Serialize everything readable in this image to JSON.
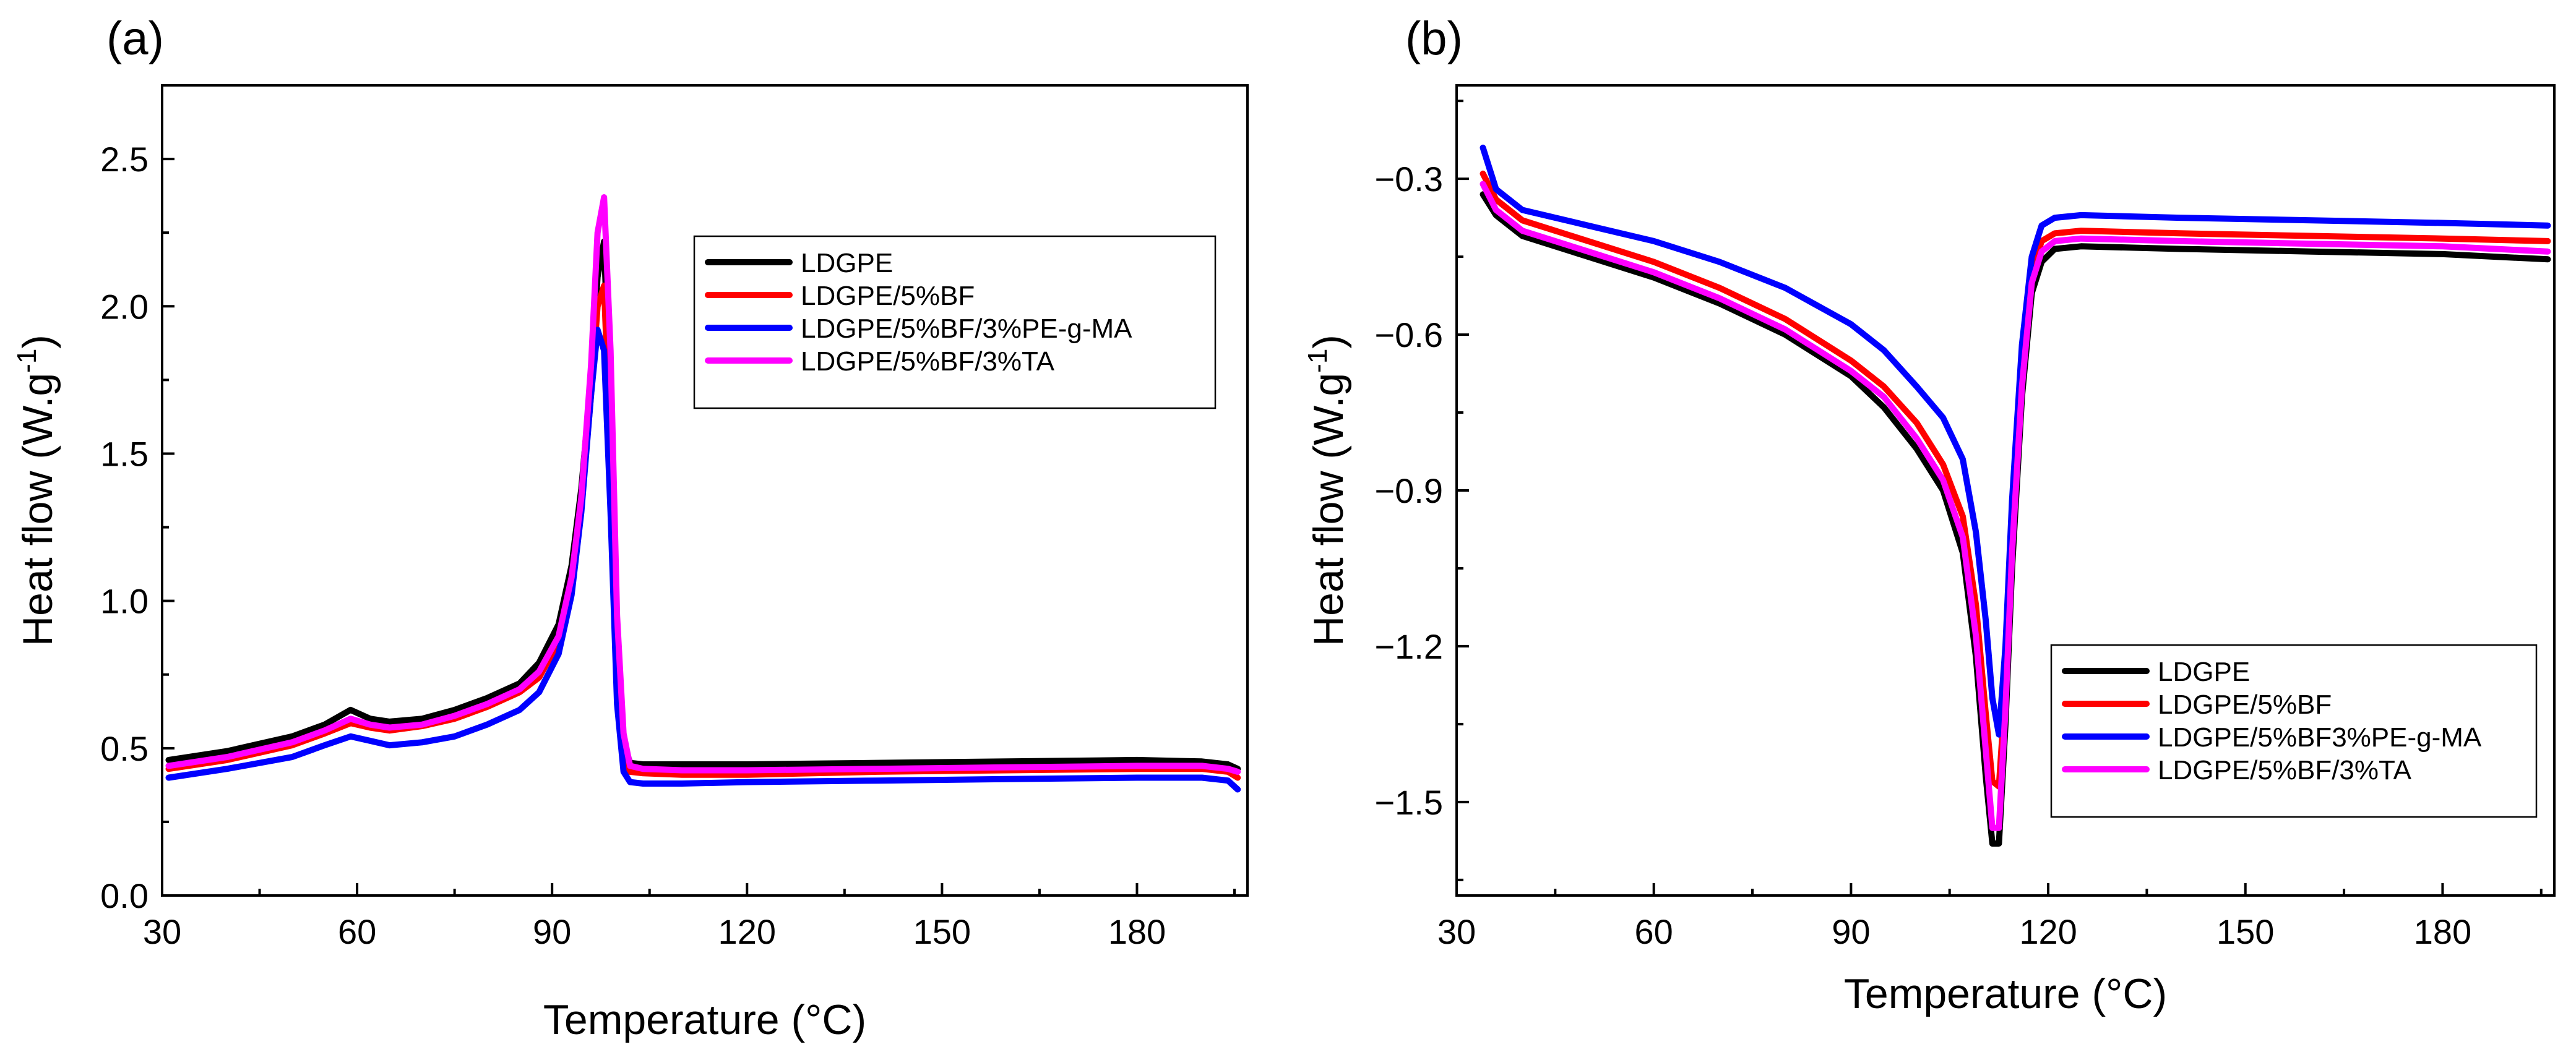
{
  "chart_data": [
    {
      "panel_label": "(a)",
      "type": "line",
      "xlabel": "Temperature (°C)",
      "ylabel": "Heat flow (W.g",
      "ylabel_sup": "-1",
      "ylabel_close": ")",
      "xlim": [
        30,
        197
      ],
      "ylim": [
        0.0,
        2.75
      ],
      "xticks": [
        30,
        60,
        90,
        120,
        150,
        180
      ],
      "xtick_labels": [
        "30",
        "60",
        "90",
        "120",
        "150",
        "180"
      ],
      "yticks": [
        0.0,
        0.5,
        1.0,
        1.5,
        2.0,
        2.5
      ],
      "ytick_labels": [
        "0.0",
        "0.5",
        "1.0",
        "1.5",
        "2.0",
        "2.5"
      ],
      "legend_position": "upper-right",
      "series": [
        {
          "name": "LDGPE",
          "color": "#000000",
          "x": [
            31,
            40,
            50,
            55,
            59,
            62,
            65,
            70,
            75,
            80,
            85,
            88,
            91,
            93,
            94.5,
            96,
            97,
            98,
            99,
            100,
            101,
            102,
            104,
            110,
            120,
            140,
            160,
            180,
            190,
            194,
            195.5
          ],
          "y": [
            0.46,
            0.49,
            0.54,
            0.58,
            0.63,
            0.6,
            0.59,
            0.6,
            0.63,
            0.67,
            0.72,
            0.79,
            0.92,
            1.12,
            1.38,
            1.75,
            2.1,
            2.22,
            1.6,
            0.85,
            0.52,
            0.45,
            0.445,
            0.445,
            0.445,
            0.45,
            0.455,
            0.46,
            0.455,
            0.445,
            0.43
          ]
        },
        {
          "name": "LDGPE/5%BF",
          "color": "#ff0000",
          "x": [
            31,
            40,
            50,
            55,
            59,
            62,
            65,
            70,
            75,
            80,
            85,
            88,
            91,
            93,
            94.5,
            96,
            97,
            98,
            99,
            100,
            101,
            102,
            104,
            110,
            120,
            140,
            160,
            180,
            190,
            194,
            195.5
          ],
          "y": [
            0.43,
            0.46,
            0.51,
            0.55,
            0.585,
            0.57,
            0.56,
            0.575,
            0.6,
            0.64,
            0.69,
            0.74,
            0.86,
            1.05,
            1.32,
            1.7,
            2.0,
            2.07,
            1.5,
            0.8,
            0.48,
            0.42,
            0.415,
            0.41,
            0.41,
            0.42,
            0.425,
            0.43,
            0.43,
            0.42,
            0.4
          ]
        },
        {
          "name": "LDGPE/5%BF/3%PE-g-MA",
          "color": "#0000ff",
          "x": [
            31,
            40,
            50,
            55,
            59,
            62,
            65,
            70,
            75,
            80,
            85,
            88,
            91,
            93,
            94.5,
            96,
            97,
            98,
            99,
            100,
            101,
            102,
            104,
            110,
            120,
            140,
            160,
            180,
            190,
            194,
            195.5
          ],
          "y": [
            0.4,
            0.43,
            0.47,
            0.51,
            0.54,
            0.525,
            0.51,
            0.52,
            0.54,
            0.58,
            0.63,
            0.69,
            0.82,
            1.02,
            1.3,
            1.7,
            1.92,
            1.85,
            1.3,
            0.65,
            0.42,
            0.385,
            0.38,
            0.38,
            0.385,
            0.39,
            0.395,
            0.4,
            0.4,
            0.39,
            0.36
          ]
        },
        {
          "name": "LDGPE/5%BF/3%TA",
          "color": "#ff00ff",
          "x": [
            31,
            40,
            50,
            55,
            59,
            62,
            65,
            70,
            75,
            80,
            85,
            88,
            91,
            93,
            94.5,
            96,
            97,
            98,
            99,
            100,
            101,
            102,
            104,
            110,
            120,
            140,
            160,
            180,
            190,
            194,
            195.5
          ],
          "y": [
            0.44,
            0.47,
            0.52,
            0.56,
            0.6,
            0.58,
            0.57,
            0.58,
            0.61,
            0.65,
            0.7,
            0.76,
            0.88,
            1.08,
            1.35,
            1.8,
            2.25,
            2.37,
            1.85,
            0.95,
            0.55,
            0.44,
            0.43,
            0.425,
            0.425,
            0.43,
            0.435,
            0.44,
            0.44,
            0.43,
            0.42
          ]
        }
      ]
    },
    {
      "panel_label": "(b)",
      "type": "line",
      "xlabel": "Temperature (°C)",
      "ylabel": "Heat flow (W.g",
      "ylabel_sup": "-1",
      "ylabel_close": ")",
      "xlim": [
        30,
        197
      ],
      "ylim": [
        -1.68,
        -0.12
      ],
      "xticks": [
        30,
        60,
        90,
        120,
        150,
        180
      ],
      "xtick_labels": [
        "30",
        "60",
        "90",
        "120",
        "150",
        "180"
      ],
      "yticks": [
        -1.5,
        -1.2,
        -0.9,
        -0.6,
        -0.3
      ],
      "ytick_labels": [
        "−1.5",
        "−1.2",
        "−0.9",
        "−0.6",
        "−0.3"
      ],
      "legend_position": "lower-right",
      "series": [
        {
          "name": "LDGPE",
          "color": "#000000",
          "x": [
            34,
            36,
            40,
            50,
            60,
            70,
            80,
            90,
            95,
            100,
            104,
            107,
            109,
            110.5,
            111.5,
            112.5,
            113.5,
            114.5,
            116,
            117.5,
            119,
            121,
            125,
            140,
            160,
            180,
            196
          ],
          "y": [
            -0.33,
            -0.37,
            -0.41,
            -0.45,
            -0.49,
            -0.54,
            -0.6,
            -0.68,
            -0.74,
            -0.82,
            -0.9,
            -1.02,
            -1.22,
            -1.45,
            -1.58,
            -1.58,
            -1.35,
            -1.05,
            -0.72,
            -0.52,
            -0.46,
            -0.435,
            -0.43,
            -0.435,
            -0.44,
            -0.445,
            -0.455
          ]
        },
        {
          "name": "LDGPE/5%BF",
          "color": "#ff0000",
          "x": [
            34,
            36,
            40,
            50,
            60,
            70,
            80,
            90,
            95,
            100,
            104,
            107,
            109,
            110.5,
            111.5,
            112.5,
            113.5,
            114.5,
            116,
            117.5,
            119,
            121,
            125,
            140,
            160,
            180,
            196
          ],
          "y": [
            -0.29,
            -0.34,
            -0.38,
            -0.42,
            -0.46,
            -0.51,
            -0.57,
            -0.65,
            -0.7,
            -0.77,
            -0.85,
            -0.95,
            -1.12,
            -1.33,
            -1.46,
            -1.47,
            -1.28,
            -1.0,
            -0.68,
            -0.48,
            -0.42,
            -0.405,
            -0.4,
            -0.405,
            -0.41,
            -0.415,
            -0.42
          ]
        },
        {
          "name": "LDGPE/5%BF3%PE-g-MA",
          "color": "#0000ff",
          "x": [
            34,
            36,
            40,
            50,
            60,
            70,
            80,
            90,
            95,
            100,
            104,
            107,
            109,
            110.5,
            111.5,
            112.5,
            113.5,
            114.5,
            116,
            117.5,
            119,
            121,
            125,
            140,
            160,
            180,
            196
          ],
          "y": [
            -0.24,
            -0.32,
            -0.36,
            -0.39,
            -0.42,
            -0.46,
            -0.51,
            -0.58,
            -0.63,
            -0.7,
            -0.76,
            -0.84,
            -0.98,
            -1.15,
            -1.3,
            -1.37,
            -1.2,
            -0.92,
            -0.62,
            -0.45,
            -0.39,
            -0.375,
            -0.37,
            -0.375,
            -0.38,
            -0.385,
            -0.39
          ]
        },
        {
          "name": "LDGPE/5%BF/3%TA",
          "color": "#ff00ff",
          "x": [
            34,
            36,
            40,
            50,
            60,
            70,
            80,
            90,
            95,
            100,
            104,
            107,
            109,
            110.5,
            111.5,
            112.5,
            113.5,
            114.5,
            116,
            117.5,
            119,
            121,
            125,
            140,
            160,
            180,
            196
          ],
          "y": [
            -0.31,
            -0.36,
            -0.4,
            -0.44,
            -0.48,
            -0.53,
            -0.59,
            -0.67,
            -0.72,
            -0.8,
            -0.88,
            -0.99,
            -1.18,
            -1.4,
            -1.55,
            -1.55,
            -1.32,
            -1.02,
            -0.7,
            -0.5,
            -0.44,
            -0.42,
            -0.415,
            -0.42,
            -0.425,
            -0.43,
            -0.44
          ]
        }
      ]
    }
  ]
}
